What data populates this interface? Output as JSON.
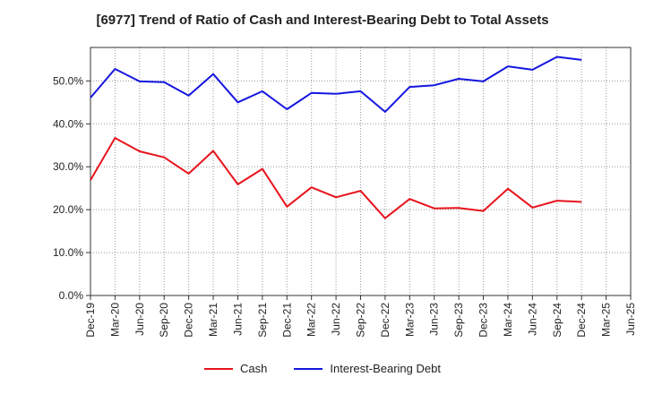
{
  "chart_data": {
    "type": "line",
    "title": "[6977]  Trend of Ratio of Cash and Interest-Bearing Debt to Total Assets",
    "xlabel": "",
    "ylabel": "",
    "ylim": [
      0,
      0.578
    ],
    "y_ticks": [
      "0.0%",
      "10.0%",
      "20.0%",
      "30.0%",
      "40.0%",
      "50.0%"
    ],
    "categories": [
      "Dec-19",
      "Mar-20",
      "Jun-20",
      "Sep-20",
      "Dec-20",
      "Mar-21",
      "Jun-21",
      "Sep-21",
      "Dec-21",
      "Mar-22",
      "Jun-22",
      "Sep-22",
      "Dec-22",
      "Mar-23",
      "Jun-23",
      "Sep-23",
      "Dec-23",
      "Mar-24",
      "Jun-24",
      "Sep-24",
      "Dec-24",
      "Mar-25",
      "Jun-25"
    ],
    "grid": true,
    "legend_position": "bottom",
    "series": [
      {
        "name": "Cash",
        "color": "#e8131c",
        "values": [
          0.269,
          0.367,
          0.336,
          0.322,
          0.284,
          0.337,
          0.259,
          0.295,
          0.207,
          0.252,
          0.229,
          0.244,
          0.18,
          0.225,
          0.203,
          0.204,
          0.197,
          0.249,
          0.205,
          0.221,
          0.218,
          null,
          null
        ]
      },
      {
        "name": "Interest-Bearing Debt",
        "color": "#1515e0",
        "values": [
          0.461,
          0.528,
          0.499,
          0.497,
          0.466,
          0.516,
          0.45,
          0.476,
          0.434,
          0.472,
          0.47,
          0.476,
          0.428,
          0.486,
          0.49,
          0.505,
          0.499,
          0.534,
          0.526,
          0.556,
          0.549,
          null,
          null
        ]
      }
    ]
  }
}
